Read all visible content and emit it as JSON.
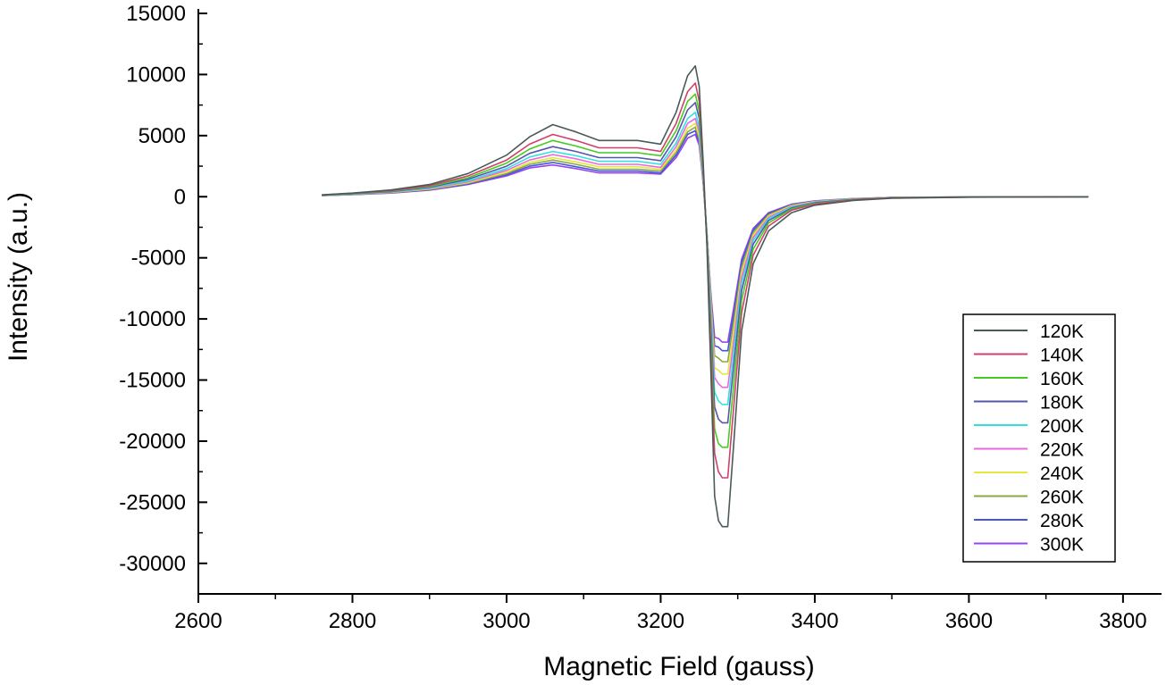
{
  "chart_data": {
    "type": "line",
    "title": "",
    "xlabel": "Magnetic Field (gauss)",
    "ylabel": "Intensity (a.u.)",
    "xlim": [
      2600,
      3850
    ],
    "ylim": [
      -32500,
      15000
    ],
    "x_ticks": [
      2600,
      2800,
      3000,
      3200,
      3400,
      3600,
      3800
    ],
    "y_ticks": [
      15000,
      10000,
      5000,
      0,
      -5000,
      -10000,
      -15000,
      -20000,
      -25000,
      -30000
    ],
    "grid": false,
    "legend_position": "bottom-right",
    "x": [
      2760,
      2800,
      2850,
      2900,
      2950,
      3000,
      3030,
      3060,
      3090,
      3120,
      3150,
      3170,
      3200,
      3220,
      3235,
      3245,
      3250,
      3255,
      3260,
      3265,
      3270,
      3275,
      3280,
      3287,
      3295,
      3305,
      3320,
      3340,
      3370,
      3400,
      3450,
      3500,
      3600,
      3755
    ],
    "series": [
      {
        "name": "120K",
        "color": "#4a5a5a",
        "values": [
          150,
          300,
          550,
          1000,
          1900,
          3400,
          4900,
          5900,
          5300,
          4600,
          4600,
          4600,
          4300,
          6900,
          9900,
          10700,
          9000,
          3000,
          -4000,
          -14000,
          -24500,
          -26500,
          -27000,
          -27000,
          -20000,
          -11000,
          -5500,
          -2800,
          -1300,
          -700,
          -300,
          -120,
          -40,
          0
        ]
      },
      {
        "name": "140K",
        "color": "#d0406a",
        "values": [
          140,
          280,
          500,
          900,
          1700,
          3000,
          4300,
          5100,
          4600,
          4000,
          4000,
          4000,
          3700,
          6000,
          8600,
          9300,
          7800,
          2500,
          -3800,
          -12500,
          -21000,
          -22500,
          -23000,
          -23000,
          -17000,
          -9500,
          -4800,
          -2400,
          -1100,
          -600,
          -260,
          -100,
          -35,
          0
        ]
      },
      {
        "name": "160K",
        "color": "#44cc22",
        "values": [
          130,
          260,
          460,
          840,
          1550,
          2750,
          3900,
          4600,
          4150,
          3600,
          3600,
          3600,
          3350,
          5400,
          7800,
          8400,
          7000,
          2200,
          -3600,
          -11500,
          -19000,
          -20200,
          -20500,
          -20500,
          -15200,
          -8500,
          -4300,
          -2150,
          -1000,
          -550,
          -240,
          -90,
          -30,
          0
        ]
      },
      {
        "name": "180K",
        "color": "#5555aa",
        "values": [
          120,
          240,
          430,
          780,
          1420,
          2500,
          3550,
          4100,
          3700,
          3200,
          3200,
          3200,
          2950,
          4900,
          7100,
          7700,
          6400,
          2000,
          -3400,
          -10600,
          -17200,
          -18200,
          -18500,
          -18500,
          -13700,
          -7700,
          -3900,
          -1950,
          -920,
          -500,
          -220,
          -85,
          -28,
          0
        ]
      },
      {
        "name": "200K",
        "color": "#33e0e0",
        "values": [
          110,
          220,
          400,
          720,
          1300,
          2300,
          3250,
          3700,
          3350,
          2900,
          2900,
          2900,
          2650,
          4400,
          6400,
          6900,
          5700,
          1800,
          -3200,
          -9700,
          -16000,
          -16700,
          -17000,
          -17000,
          -12600,
          -7100,
          -3600,
          -1800,
          -850,
          -460,
          -200,
          -80,
          -25,
          0
        ]
      },
      {
        "name": "220K",
        "color": "#ee66dd",
        "values": [
          105,
          210,
          370,
          670,
          1220,
          2150,
          3000,
          3450,
          3100,
          2650,
          2650,
          2650,
          2400,
          4100,
          6000,
          6400,
          5300,
          1650,
          -3100,
          -9000,
          -14800,
          -15300,
          -15600,
          -15600,
          -11700,
          -6600,
          -3350,
          -1680,
          -790,
          -430,
          -190,
          -75,
          -24,
          0
        ]
      },
      {
        "name": "240K",
        "color": "#e6e640",
        "values": [
          100,
          200,
          350,
          630,
          1150,
          2000,
          2800,
          3200,
          2850,
          2450,
          2450,
          2450,
          2250,
          3800,
          5600,
          6000,
          4950,
          1500,
          -3000,
          -8500,
          -14000,
          -14200,
          -14500,
          -14500,
          -10900,
          -6200,
          -3150,
          -1580,
          -740,
          -400,
          -180,
          -70,
          -22,
          0
        ]
      },
      {
        "name": "260K",
        "color": "#88aa44",
        "values": [
          95,
          190,
          330,
          600,
          1100,
          1900,
          2650,
          3000,
          2650,
          2250,
          2250,
          2250,
          2100,
          3600,
          5300,
          5700,
          4700,
          1400,
          -3000,
          -8200,
          -13000,
          -13200,
          -13500,
          -13500,
          -10100,
          -5800,
          -2950,
          -1480,
          -700,
          -380,
          -170,
          -65,
          -21,
          0
        ]
      },
      {
        "name": "280K",
        "color": "#4455dd",
        "values": [
          90,
          180,
          315,
          570,
          1050,
          1800,
          2500,
          2800,
          2450,
          2100,
          2100,
          2100,
          1950,
          3400,
          5100,
          5400,
          4450,
          1300,
          -3000,
          -8000,
          -12200,
          -12300,
          -12600,
          -12600,
          -9500,
          -5400,
          -2750,
          -1380,
          -650,
          -360,
          -160,
          -62,
          -20,
          0
        ]
      },
      {
        "name": "300K",
        "color": "#9944ee",
        "values": [
          85,
          170,
          300,
          540,
          1000,
          1700,
          2350,
          2600,
          2300,
          1950,
          1950,
          1950,
          1850,
          3200,
          4800,
          5100,
          4200,
          1200,
          -3000,
          -7800,
          -11500,
          -11600,
          -11900,
          -11900,
          -9000,
          -5100,
          -2600,
          -1300,
          -610,
          -340,
          -150,
          -58,
          -19,
          0
        ]
      }
    ]
  }
}
